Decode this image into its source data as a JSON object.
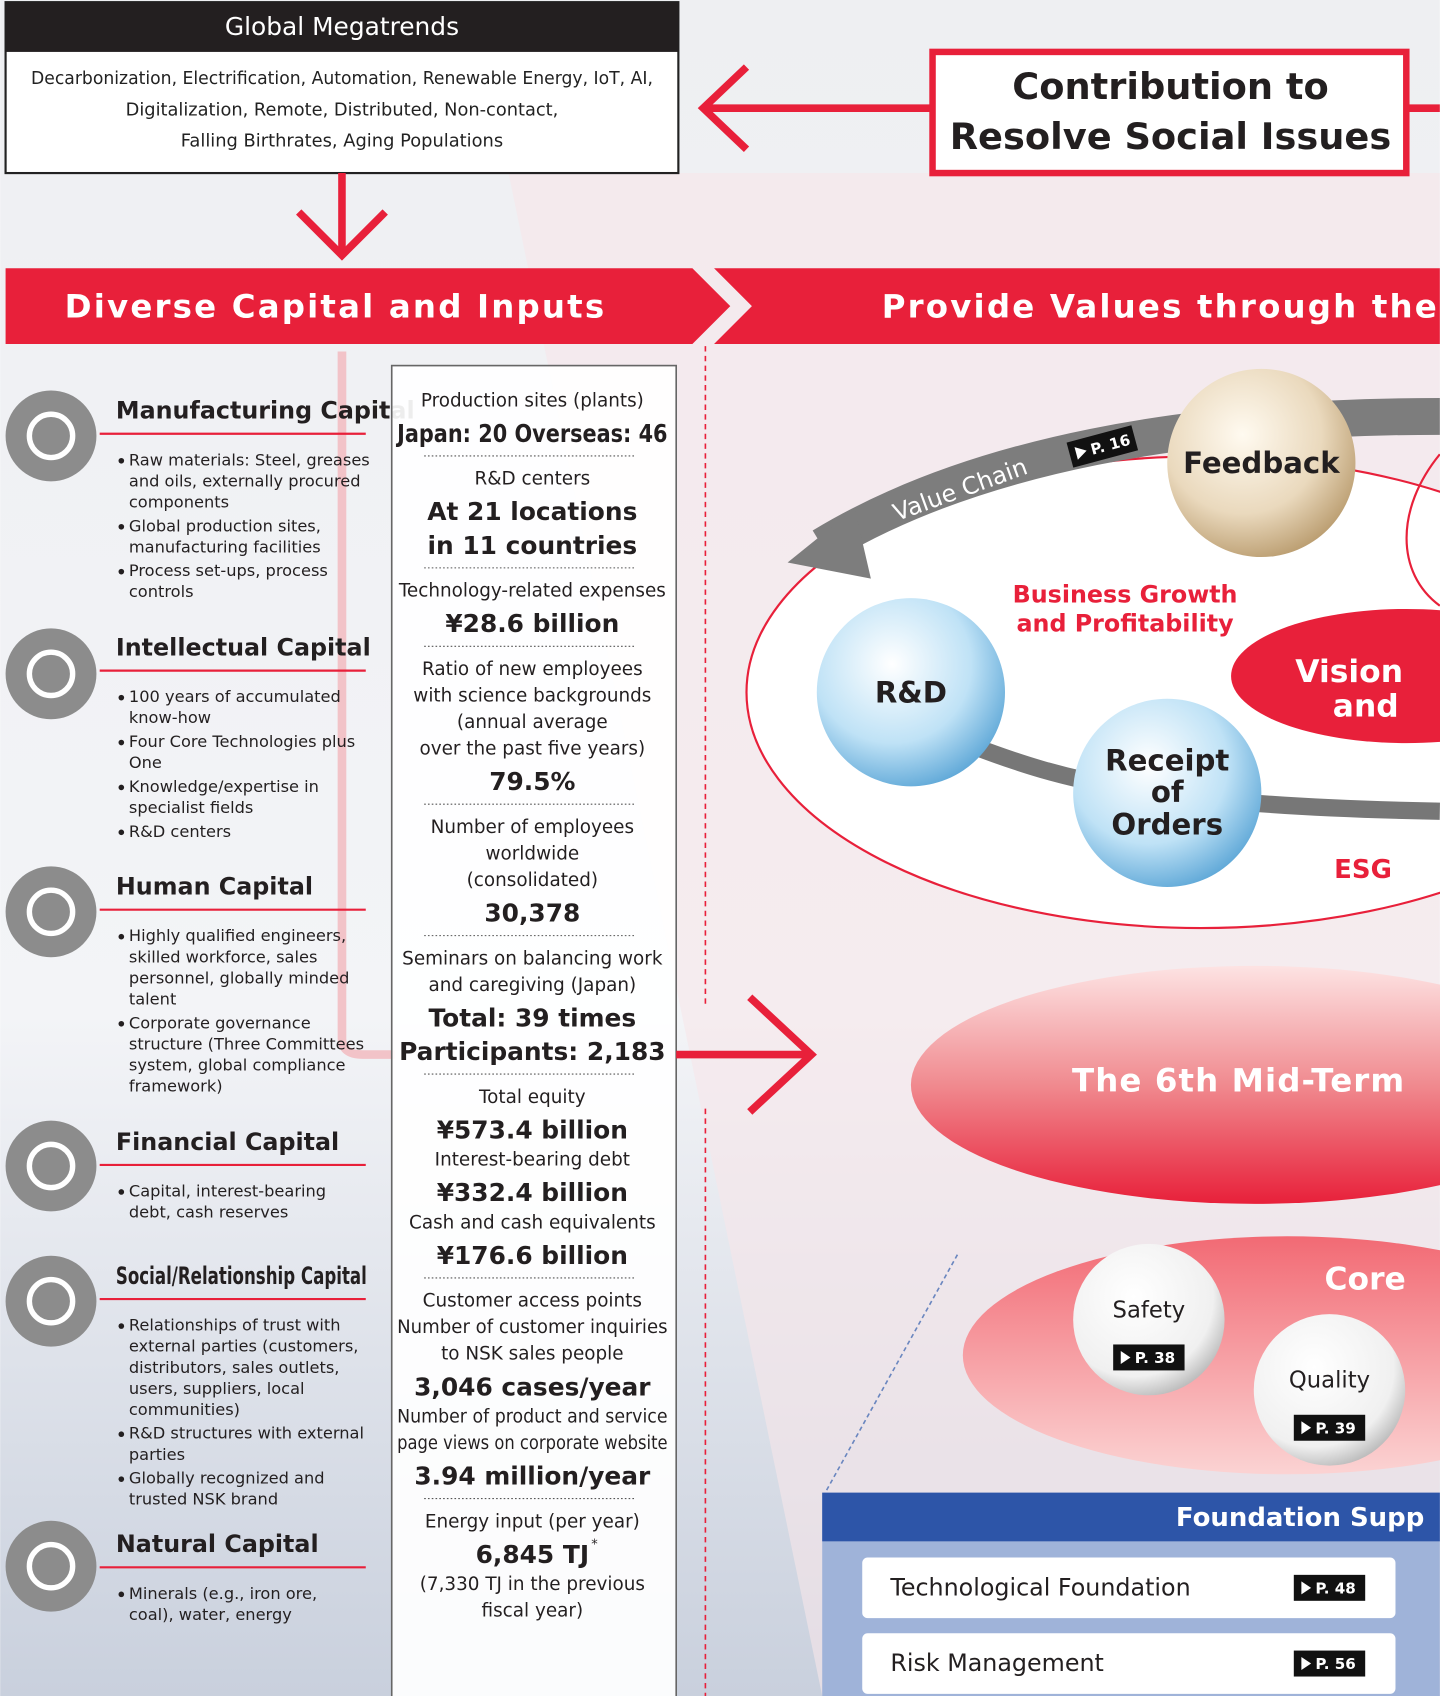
{
  "megatrends": {
    "title": "Global Megatrends",
    "lines": [
      "Decarbonization, Electrification, Automation, Renewable Energy, IoT, AI,",
      "Digitalization, Remote, Distributed, Non-contact,",
      "Falling Birthrates, Aging Populations"
    ]
  },
  "contribution": {
    "lines": [
      "Contribution to",
      "Resolve Social Issues"
    ]
  },
  "banners": {
    "left": "Diverse Capital and Inputs",
    "right": "Provide Values through the"
  },
  "capitals": [
    {
      "name": "Manufacturing Capital",
      "bullets": [
        [
          "Raw materials: Steel, greases",
          "and oils, externally procured",
          "components"
        ],
        [
          "Global production sites,",
          "manufacturing facilities"
        ],
        [
          "Process set-ups, process",
          "controls"
        ]
      ]
    },
    {
      "name": "Intellectual Capital",
      "bullets": [
        [
          "100 years of accumulated",
          "know-how"
        ],
        [
          "Four Core Technologies plus",
          "One"
        ],
        [
          "Knowledge/expertise in",
          "specialist fields"
        ],
        [
          "R&D centers"
        ]
      ]
    },
    {
      "name": "Human Capital",
      "bullets": [
        [
          "Highly qualified engineers,",
          "skilled workforce, sales",
          "personnel, globally minded",
          "talent"
        ],
        [
          "Corporate governance",
          "structure (Three Committees",
          "system, global compliance",
          "framework)"
        ]
      ]
    },
    {
      "name": "Financial Capital",
      "bullets": [
        [
          "Capital, interest-bearing",
          "debt, cash reserves"
        ]
      ]
    },
    {
      "name": "Social/Relationship Capital",
      "bullets": [
        [
          "Relationships of trust with",
          "external parties (customers,",
          "distributors, sales outlets,",
          "users, suppliers, local",
          "communities)"
        ],
        [
          "R&D structures with external",
          "parties"
        ],
        [
          "Globally recognized and",
          "trusted NSK brand"
        ]
      ]
    },
    {
      "name": "Natural Capital",
      "bullets": [
        [
          "Minerals (e.g., iron ore,",
          "coal), water, energy"
        ]
      ]
    }
  ],
  "inputs": [
    [
      {
        "label": "Production sites (plants)"
      },
      {
        "value": "Japan: 20  Overseas: 46"
      }
    ],
    [
      {
        "label": "R&D centers"
      },
      {
        "value": "At 21 locations"
      },
      {
        "value": "in 11 countries"
      }
    ],
    [
      {
        "label": "Technology-related expenses"
      },
      {
        "value": "¥28.6 billion"
      }
    ],
    [
      {
        "label": "Ratio of new employees"
      },
      {
        "label": "with science backgrounds"
      },
      {
        "label": "(annual average"
      },
      {
        "label": "over the past five years)"
      },
      {
        "value": "79.5%"
      }
    ],
    [
      {
        "label": "Number of employees"
      },
      {
        "label": "worldwide"
      },
      {
        "label": "(consolidated)"
      },
      {
        "value": "30,378"
      }
    ],
    [
      {
        "label": "Seminars on balancing work"
      },
      {
        "label": "and caregiving (Japan)"
      },
      {
        "value": "Total: 39 times"
      },
      {
        "value": "Participants: 2,183"
      }
    ],
    [
      {
        "label": "Total equity"
      },
      {
        "value": "¥573.4 billion"
      },
      {
        "label": "Interest-bearing debt"
      },
      {
        "value": "¥332.4 billion"
      },
      {
        "label": "Cash and cash equivalents"
      },
      {
        "value": "¥176.6 billion"
      }
    ],
    [
      {
        "label": "Customer access points"
      },
      {
        "label": "Number of customer inquiries"
      },
      {
        "label": "to NSK sales people"
      },
      {
        "value": "3,046 cases/year"
      },
      {
        "label": "Number of product and service"
      },
      {
        "label": "page views on corporate website"
      },
      {
        "value": "3.94 million/year"
      }
    ],
    [
      {
        "label": "Energy input (per year)"
      },
      {
        "value": "6,845 TJ",
        "mark": "*"
      },
      {
        "label": "(7,330 TJ in the previous"
      },
      {
        "label": "fiscal year)"
      }
    ]
  ],
  "diagram": {
    "value_chain": "Value Chain",
    "value_chain_page": "P. 16",
    "feedback": "Feedback",
    "growth": [
      "Business Growth",
      "and Profitability"
    ],
    "rd": "R&D",
    "vision": [
      "Vision",
      "and"
    ],
    "receipt": [
      "Receipt",
      "of",
      "Orders"
    ],
    "esg": "ESG",
    "mid_term": "The 6th Mid-Term",
    "core": "Core",
    "safety": "Safety",
    "safety_page": "P. 38",
    "quality": "Quality",
    "quality_page": "P. 39",
    "foundation": {
      "title": "Foundation Supp",
      "items": [
        {
          "name": "Technological Foundation",
          "page": "P. 48"
        },
        {
          "name": "Risk Management",
          "page": "P. 56"
        }
      ]
    }
  }
}
